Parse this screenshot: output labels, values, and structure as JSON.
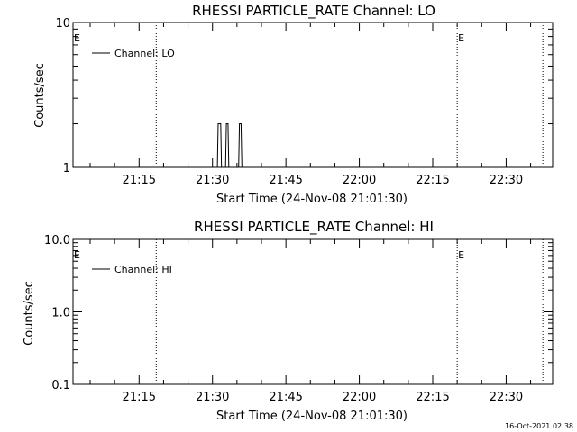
{
  "chart_data": [
    {
      "type": "line",
      "title": "RHESSI PARTICLE_RATE Channel: LO",
      "xlabel": "Start Time (24-Nov-08 21:01:30)",
      "ylabel": "Counts/sec",
      "xlim": [
        "21:01:30",
        "22:39:30"
      ],
      "x_ticks": [
        "21:15",
        "21:30",
        "21:45",
        "22:00",
        "22:15",
        "22:30"
      ],
      "y_scale": "log",
      "ylim": [
        1,
        10
      ],
      "y_ticks": [
        "1",
        "10"
      ],
      "legend": {
        "label": "Channel: LO",
        "placement": "top-left"
      },
      "event_lines": [
        "21:18:30",
        "22:20:00",
        "22:37:30"
      ],
      "event_markers": [
        {
          "label": "E",
          "time": "21:01:30"
        },
        {
          "label": "E",
          "time": "22:20:00"
        }
      ],
      "series": [
        {
          "values": [
            {
              "x": "21:31:00",
              "y": 1
            },
            {
              "x": "21:31:10",
              "y": 2
            },
            {
              "x": "21:31:40",
              "y": 2
            },
            {
              "x": "21:31:50",
              "y": 1
            },
            {
              "x": "21:32:40",
              "y": 1
            },
            {
              "x": "21:32:50",
              "y": 2
            },
            {
              "x": "21:33:10",
              "y": 2
            },
            {
              "x": "21:33:20",
              "y": 1
            },
            {
              "x": "21:35:20",
              "y": 1
            },
            {
              "x": "21:35:30",
              "y": 2
            },
            {
              "x": "21:35:50",
              "y": 2
            },
            {
              "x": "21:36:00",
              "y": 1
            }
          ]
        }
      ]
    },
    {
      "type": "line",
      "title": "RHESSI PARTICLE_RATE Channel: HI",
      "xlabel": "Start Time (24-Nov-08 21:01:30)",
      "ylabel": "Counts/sec",
      "xlim": [
        "21:01:30",
        "22:39:30"
      ],
      "x_ticks": [
        "21:15",
        "21:30",
        "21:45",
        "22:00",
        "22:15",
        "22:30"
      ],
      "y_scale": "log",
      "ylim": [
        0.1,
        10
      ],
      "y_ticks": [
        "0.1",
        "1.0",
        "10.0"
      ],
      "legend": {
        "label": "Channel: HI",
        "placement": "top-left"
      },
      "event_lines": [
        "21:18:30",
        "22:20:00",
        "22:37:30"
      ],
      "event_markers": [
        {
          "label": "E",
          "time": "21:01:30"
        },
        {
          "label": "E",
          "time": "22:20:00"
        }
      ],
      "series": [
        {
          "values": []
        }
      ]
    }
  ],
  "timestamp": "16-Oct-2021 02:38"
}
